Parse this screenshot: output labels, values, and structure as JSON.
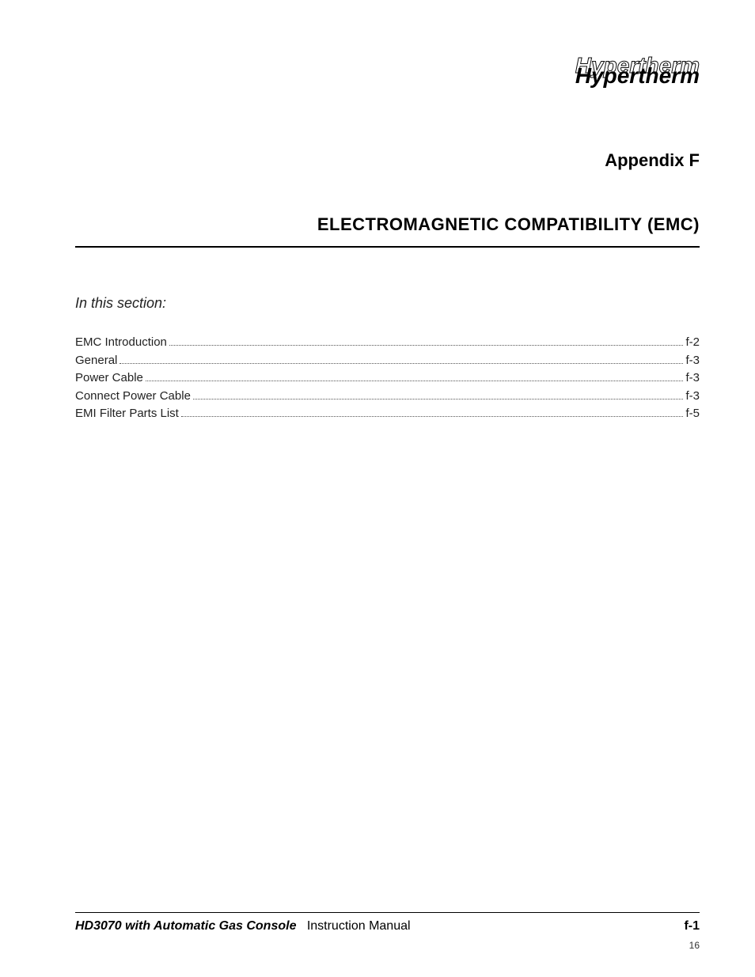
{
  "logo": {
    "text": "Hypertherm"
  },
  "appendix_label": "Appendix F",
  "title": "ELECTROMAGNETIC COMPATIBILITY (EMC)",
  "section_label": "In this section:",
  "toc": [
    {
      "label": "EMC Introduction",
      "page": "f-2"
    },
    {
      "label": "General",
      "page": "f-3"
    },
    {
      "label": "Power Cable",
      "page": "f-3"
    },
    {
      "label": "Connect Power Cable",
      "page": "f-3"
    },
    {
      "label": "EMI Filter Parts List",
      "page": "f-5"
    }
  ],
  "footer": {
    "product": "HD3070 with Automatic Gas Console",
    "manual": "Instruction Manual",
    "page": "f-1",
    "sheet": "16"
  },
  "colors": {
    "text": "#000000",
    "background": "#ffffff",
    "dots": "#555555"
  },
  "typography": {
    "body_family": "Arial, Helvetica, sans-serif",
    "appendix_fontsize": 22,
    "title_fontsize": 22,
    "section_label_fontsize": 18,
    "toc_fontsize": 15,
    "footer_fontsize": 16,
    "logo_fontsize": 28
  }
}
